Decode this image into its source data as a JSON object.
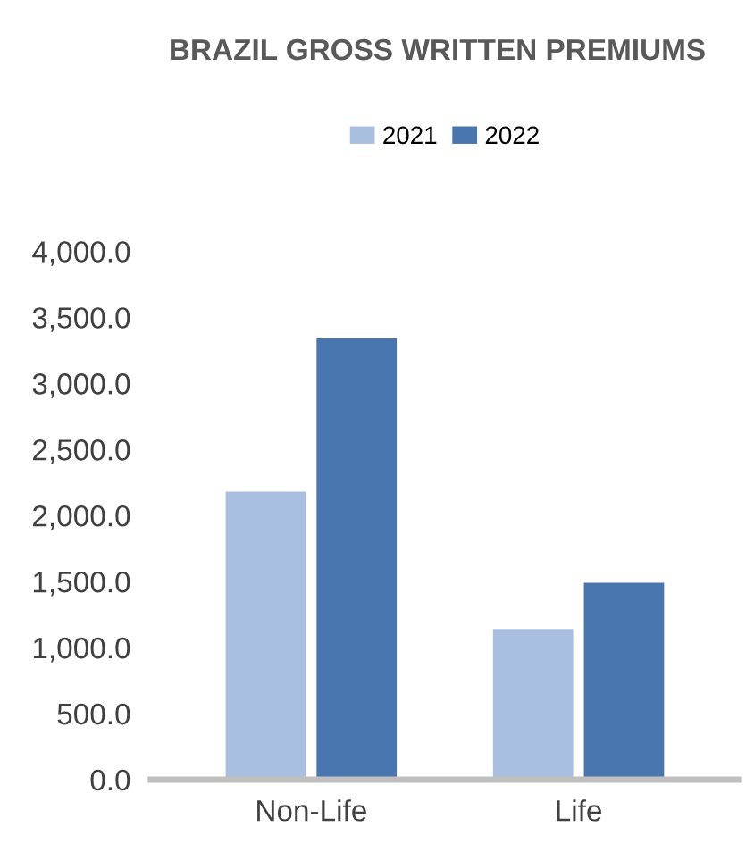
{
  "chart_data": {
    "type": "bar",
    "title": "BRAZIL GROSS WRITTEN PREMIUMS",
    "categories": [
      "Non-Life",
      "Life"
    ],
    "series": [
      {
        "name": "2021",
        "color": "#a9bfdf",
        "values": [
          2180,
          1140
        ]
      },
      {
        "name": "2022",
        "color": "#4a76b0",
        "values": [
          3340,
          1490
        ]
      }
    ],
    "ylim": [
      0,
      4000
    ],
    "yticks": [
      {
        "value": 0,
        "label": "0.0"
      },
      {
        "value": 500,
        "label": "500.0"
      },
      {
        "value": 1000,
        "label": "1,000.0"
      },
      {
        "value": 1500,
        "label": "1,500.0"
      },
      {
        "value": 2000,
        "label": "2,000.0"
      },
      {
        "value": 2500,
        "label": "2,500.0"
      },
      {
        "value": 3000,
        "label": "3,000.0"
      },
      {
        "value": 3500,
        "label": "3,500.0"
      },
      {
        "value": 4000,
        "label": "4,000.0"
      }
    ],
    "grid": false,
    "legend": "top"
  }
}
